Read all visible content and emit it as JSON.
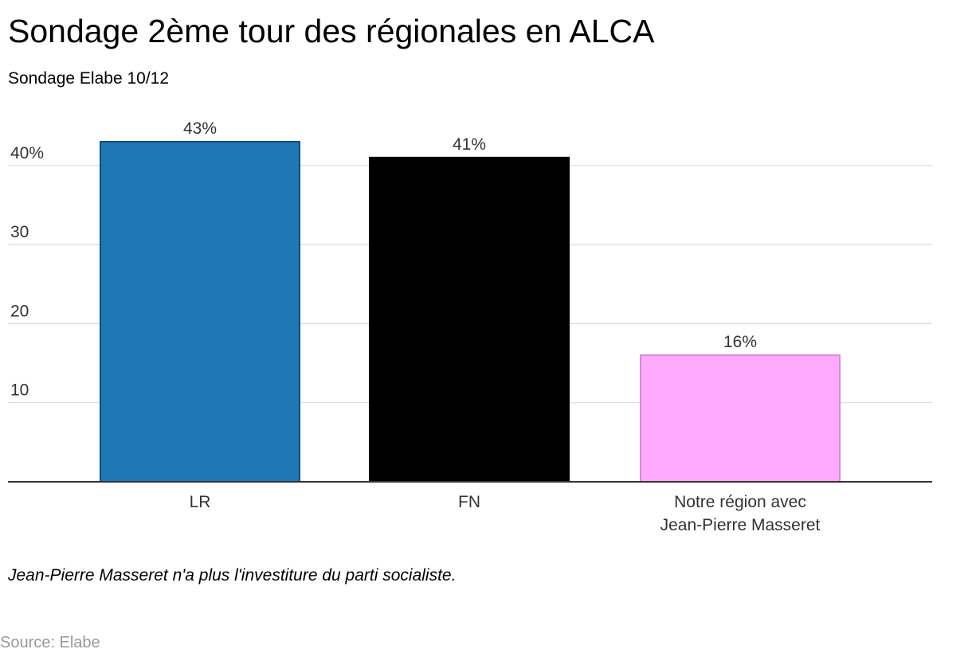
{
  "title": "Sondage 2ème tour des régionales en ALCA",
  "subtitle": "Sondage Elabe 10/12",
  "note": "Jean-Pierre Masseret n'a plus l'investiture du parti socialiste.",
  "source": "Source: Elabe",
  "chart_data": {
    "type": "bar",
    "categories": [
      "LR",
      "FN",
      "Notre région avec Jean-Pierre Masseret"
    ],
    "category_label_lines": [
      [
        "LR"
      ],
      [
        "FN"
      ],
      [
        "Notre région avec",
        "Jean-Pierre Masseret"
      ]
    ],
    "values": [
      43,
      41,
      16
    ],
    "value_labels": [
      "43%",
      "41%",
      "16%"
    ],
    "colors": [
      "#1f77b4",
      "#000000",
      "#ffaaff"
    ],
    "border_colors": [
      "#0b4f86",
      "#000000",
      "#d48ad4"
    ],
    "ylim": [
      0,
      43
    ],
    "yticks": [
      10,
      20,
      30,
      40
    ],
    "ytick_labels": [
      "10",
      "20",
      "30",
      "40%"
    ],
    "grid": true,
    "xlabel": "",
    "ylabel": ""
  }
}
